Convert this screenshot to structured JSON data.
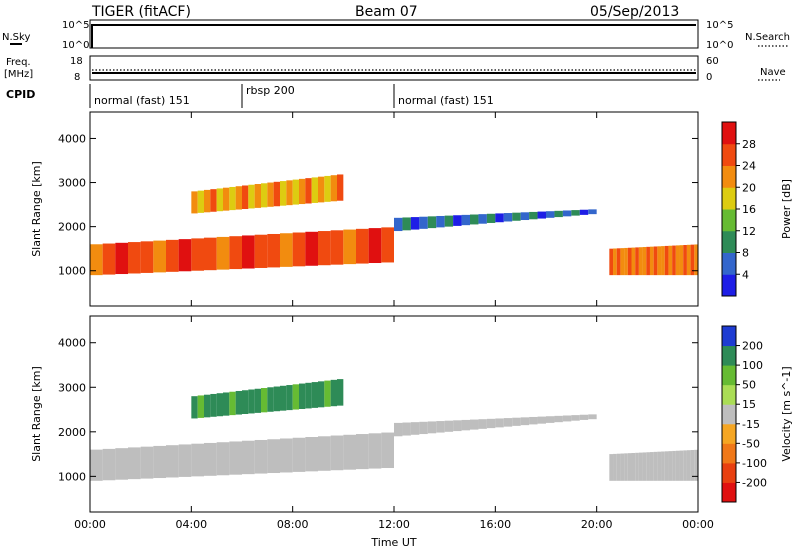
{
  "header": {
    "radar": "TIGER (fitACF)",
    "beam": "Beam 07",
    "date": "05/Sep/2013"
  },
  "side_labels": {
    "n_sky": "N.Sky",
    "n_search": "N.Search",
    "freq_top": "Freq.",
    "freq_unit": "[MHz]",
    "nave": "Nave",
    "cpid": "CPID"
  },
  "noise_axis": {
    "left_top": "10^5",
    "left_bottom": "10^0",
    "right_top": "10^5",
    "right_bottom": "10^0"
  },
  "freq_axis": {
    "left_top": "18",
    "left_bottom": "8",
    "right_top": "60",
    "right_bottom": "0"
  },
  "cpid_segments": [
    {
      "label": "normal (fast) 151",
      "start_hour": 0,
      "end_hour": 6
    },
    {
      "label": "rbsp 200",
      "start_hour": 6,
      "end_hour": 12
    },
    {
      "label": "normal (fast) 151",
      "start_hour": 12,
      "end_hour": 24
    }
  ],
  "chart_data": [
    {
      "type": "heatmap",
      "title": "",
      "xlabel": "",
      "ylabel": "Slant Range [km]",
      "xlim": [
        0,
        24
      ],
      "ylim": [
        200,
        4600
      ],
      "yticks": [
        1000,
        2000,
        3000,
        4000
      ],
      "colorbar": {
        "label": "Power [dB]",
        "ticks": [
          "4",
          "8",
          "12",
          "16",
          "20",
          "24",
          "28"
        ],
        "range": [
          0,
          30
        ],
        "colors": [
          "#1e1ee6",
          "#3366cc",
          "#2e8b57",
          "#66bb33",
          "#ddcc11",
          "#f28c0f",
          "#f04a10",
          "#e01010"
        ]
      },
      "bands": [
        {
          "t0": 0,
          "t1": 12,
          "r0_start": 900,
          "r0_end": 1200,
          "r1_start": 1600,
          "r1_end": 2000,
          "level": 24
        },
        {
          "t0": 4,
          "t1": 10,
          "r0_start": 2300,
          "r0_end": 2600,
          "r1_start": 2800,
          "r1_end": 3200,
          "level": 20
        },
        {
          "t0": 12,
          "t1": 20,
          "r0_start": 1900,
          "r0_end": 2300,
          "r1_start": 2200,
          "r1_end": 2400,
          "level": 6
        },
        {
          "t0": 20.5,
          "t1": 24,
          "r0_start": 900,
          "r0_end": 900,
          "r1_start": 1500,
          "r1_end": 1600,
          "level": 22
        }
      ]
    },
    {
      "type": "heatmap",
      "title": "",
      "xlabel": "Time UT",
      "ylabel": "Slant Range [km]",
      "xlim": [
        0,
        24
      ],
      "ylim": [
        200,
        4600
      ],
      "yticks": [
        1000,
        2000,
        3000,
        4000
      ],
      "xticks": [
        "00:00",
        "04:00",
        "08:00",
        "12:00",
        "16:00",
        "20:00",
        "00:00"
      ],
      "colorbar": {
        "label": "Velocity [m s^-1]",
        "ticks": [
          "200",
          "100",
          "50",
          "15",
          "-15",
          "-50",
          "-100",
          "-200"
        ],
        "range": [
          -250,
          250
        ],
        "colors": [
          "#1e3cd2",
          "#2e8b57",
          "#66bb33",
          "#aadd55",
          "#bebebe",
          "#f5a623",
          "#f07818",
          "#e84010",
          "#e01010"
        ]
      },
      "bands": [
        {
          "t0": 0,
          "t1": 12,
          "r0_start": 900,
          "r0_end": 1200,
          "r1_start": 1600,
          "r1_end": 2000,
          "level": 0
        },
        {
          "t0": 4,
          "t1": 10,
          "r0_start": 2300,
          "r0_end": 2600,
          "r1_start": 2800,
          "r1_end": 3200,
          "level": 150
        },
        {
          "t0": 12,
          "t1": 20,
          "r0_start": 1900,
          "r0_end": 2300,
          "r1_start": 2200,
          "r1_end": 2400,
          "level": 0
        },
        {
          "t0": 20.5,
          "t1": 24,
          "r0_start": 900,
          "r0_end": 900,
          "r1_start": 1500,
          "r1_end": 1600,
          "level": 0
        }
      ]
    }
  ]
}
